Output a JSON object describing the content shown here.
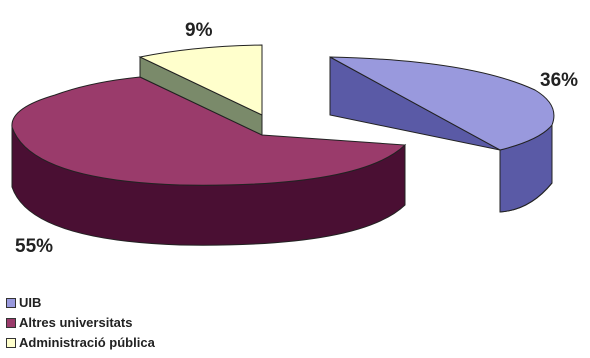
{
  "chart_data": {
    "type": "pie",
    "style": "3d-exploded",
    "categories": [
      "UIB",
      "Altres universitats",
      "Administració pública"
    ],
    "values": [
      36,
      55,
      9
    ],
    "value_labels": [
      "36%",
      "55%",
      "9%"
    ],
    "legend_position": "bottom-left"
  },
  "legend": {
    "items": [
      {
        "label": "UIB",
        "color": "#9999dd"
      },
      {
        "label": "Altres universitats",
        "color": "#9a3b6b"
      },
      {
        "label": "Administració pública",
        "color": "#ffffcc"
      }
    ]
  },
  "colors": {
    "uib_top": "#9999dd",
    "uib_side": "#5a5aa6",
    "altres_top": "#9a3b6b",
    "altres_side": "#4a0f33",
    "admin_top": "#ffffcc",
    "admin_side": "#7a8a6a"
  }
}
